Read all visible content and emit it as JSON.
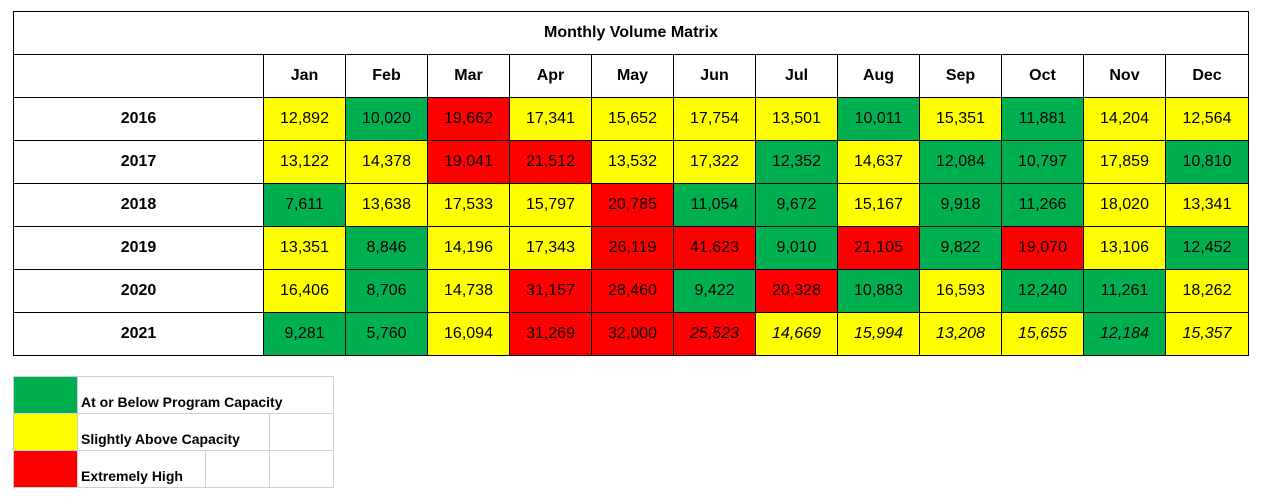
{
  "chart_data": {
    "type": "heatmap",
    "title": "Monthly Volume Matrix",
    "columns": [
      "Jan",
      "Feb",
      "Mar",
      "Apr",
      "May",
      "Jun",
      "Jul",
      "Aug",
      "Sep",
      "Oct",
      "Nov",
      "Dec"
    ],
    "rows": [
      {
        "year": "2016",
        "values": [
          "12,892",
          "10,020",
          "19,662",
          "17,341",
          "15,652",
          "17,754",
          "13,501",
          "10,011",
          "15,351",
          "11,881",
          "14,204",
          "12,564"
        ],
        "levels": [
          "slight",
          "below",
          "high",
          "slight",
          "slight",
          "slight",
          "slight",
          "below",
          "slight",
          "below",
          "slight",
          "slight"
        ],
        "italic": [
          false,
          false,
          false,
          false,
          false,
          false,
          false,
          false,
          false,
          false,
          false,
          false
        ]
      },
      {
        "year": "2017",
        "values": [
          "13,122",
          "14,378",
          "19,041",
          "21,512",
          "13,532",
          "17,322",
          "12,352",
          "14,637",
          "12,084",
          "10,797",
          "17,859",
          "10,810"
        ],
        "levels": [
          "slight",
          "slight",
          "high",
          "high",
          "slight",
          "slight",
          "below",
          "slight",
          "below",
          "below",
          "slight",
          "below"
        ],
        "italic": [
          false,
          false,
          false,
          false,
          false,
          false,
          false,
          false,
          false,
          false,
          false,
          false
        ]
      },
      {
        "year": "2018",
        "values": [
          "7,611",
          "13,638",
          "17,533",
          "15,797",
          "20,785",
          "11,054",
          "9,672",
          "15,167",
          "9,918",
          "11,266",
          "18,020",
          "13,341"
        ],
        "levels": [
          "below",
          "slight",
          "slight",
          "slight",
          "high",
          "below",
          "below",
          "slight",
          "below",
          "below",
          "slight",
          "slight"
        ],
        "italic": [
          false,
          false,
          false,
          false,
          false,
          false,
          false,
          false,
          false,
          false,
          false,
          false
        ]
      },
      {
        "year": "2019",
        "values": [
          "13,351",
          "8,846",
          "14,196",
          "17,343",
          "26,119",
          "41,623",
          "9,010",
          "21,105",
          "9,822",
          "19,070",
          "13,106",
          "12,452"
        ],
        "levels": [
          "slight",
          "below",
          "slight",
          "slight",
          "high",
          "high",
          "below",
          "high",
          "below",
          "high",
          "slight",
          "below"
        ],
        "italic": [
          false,
          false,
          false,
          false,
          false,
          false,
          false,
          false,
          false,
          false,
          false,
          false
        ]
      },
      {
        "year": "2020",
        "values": [
          "16,406",
          "8,706",
          "14,738",
          "31,157",
          "28,460",
          "9,422",
          "20,328",
          "10,883",
          "16,593",
          "12,240",
          "11,261",
          "18,262"
        ],
        "levels": [
          "slight",
          "below",
          "slight",
          "high",
          "high",
          "below",
          "high",
          "below",
          "slight",
          "below",
          "below",
          "slight"
        ],
        "italic": [
          false,
          false,
          false,
          false,
          false,
          false,
          false,
          false,
          false,
          false,
          false,
          false
        ]
      },
      {
        "year": "2021",
        "values": [
          "9,281",
          "5,760",
          "16,094",
          "31,269",
          "32,000",
          "25,523",
          "14,669",
          "15,994",
          "13,208",
          "15,655",
          "12,184",
          "15,357"
        ],
        "levels": [
          "below",
          "below",
          "slight",
          "high",
          "high",
          "high",
          "slight",
          "slight",
          "slight",
          "slight",
          "below",
          "slight"
        ],
        "italic": [
          false,
          false,
          false,
          false,
          false,
          true,
          true,
          true,
          true,
          true,
          true,
          true
        ]
      }
    ]
  },
  "colors": {
    "below": "#00b050",
    "slight": "#ffff00",
    "high": "#ff0000"
  },
  "legend": [
    {
      "key": "below",
      "label": "At or Below Program Capacity"
    },
    {
      "key": "slight",
      "label": "Slightly Above Capacity"
    },
    {
      "key": "high",
      "label": "Extremely High"
    }
  ]
}
